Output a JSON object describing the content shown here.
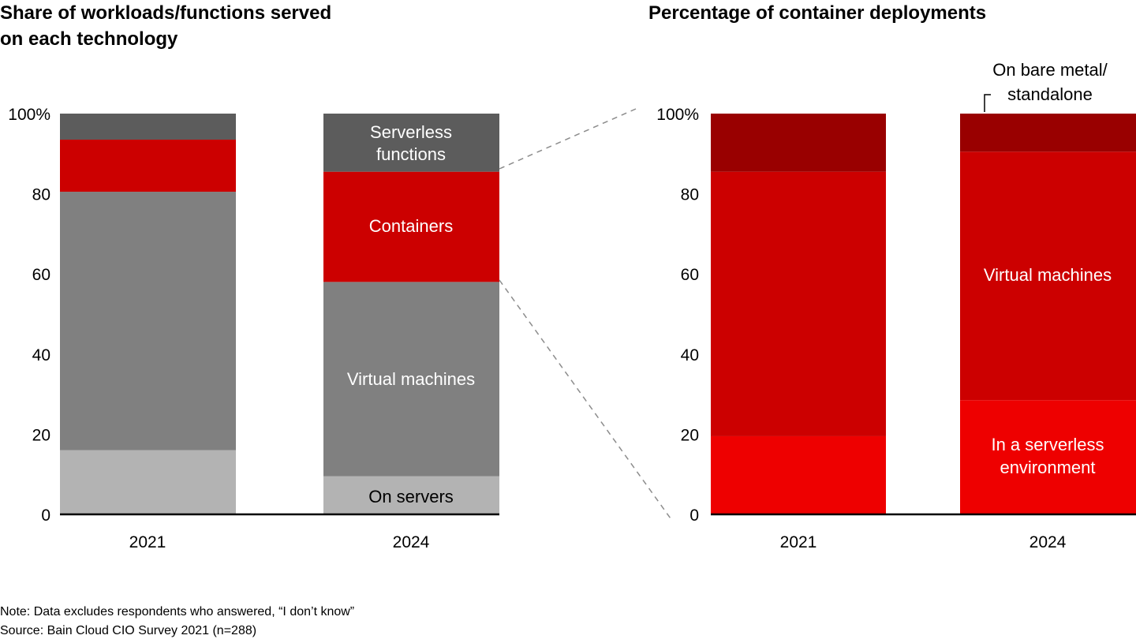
{
  "chart_data": [
    {
      "type": "bar",
      "stacked": true,
      "title_lines": [
        "Share of workloads/functions served",
        "on each technology"
      ],
      "categories": [
        "2021",
        "2024"
      ],
      "ylim": [
        0,
        100
      ],
      "yticks": [
        "0",
        "20",
        "40",
        "60",
        "80",
        "100%"
      ],
      "series": [
        {
          "name": "On servers",
          "color": "#b3b3b3",
          "values": [
            16,
            9.5
          ]
        },
        {
          "name": "Virtual machines",
          "color": "#808080",
          "values": [
            64.5,
            48.5
          ]
        },
        {
          "name": "Containers",
          "color": "#cc0000",
          "values": [
            13,
            27.5
          ]
        },
        {
          "name": "Serverless functions",
          "color": "#5c5c5c",
          "values": [
            6.5,
            14.5
          ]
        }
      ],
      "segment_labels": {
        "serverless": [
          "Serverless",
          "functions"
        ],
        "containers": "Containers",
        "vms": "Virtual machines",
        "servers": "On servers"
      }
    },
    {
      "type": "bar",
      "stacked": true,
      "title": "Percentage of container deployments",
      "categories": [
        "2021",
        "2024"
      ],
      "ylim": [
        0,
        100
      ],
      "yticks": [
        "0",
        "20",
        "40",
        "60",
        "80",
        "100%"
      ],
      "series": [
        {
          "name": "In a serverless environment",
          "color": "#ee0000",
          "values": [
            19.5,
            28.5
          ]
        },
        {
          "name": "Virtual machines",
          "color": "#cc0000",
          "values": [
            66,
            62
          ]
        },
        {
          "name": "On bare metal/standalone",
          "color": "#990000",
          "values": [
            14.5,
            9.5
          ]
        }
      ],
      "segment_labels": {
        "serverless": [
          "In a serverless",
          "environment"
        ],
        "vms": "Virtual machines",
        "bare_metal": [
          "On bare metal/",
          "standalone"
        ]
      }
    }
  ],
  "note": "Note: Data excludes respondents who answered, “I don’t know”",
  "source": "Source: Bain Cloud CIO Survey 2021 (n=288)"
}
